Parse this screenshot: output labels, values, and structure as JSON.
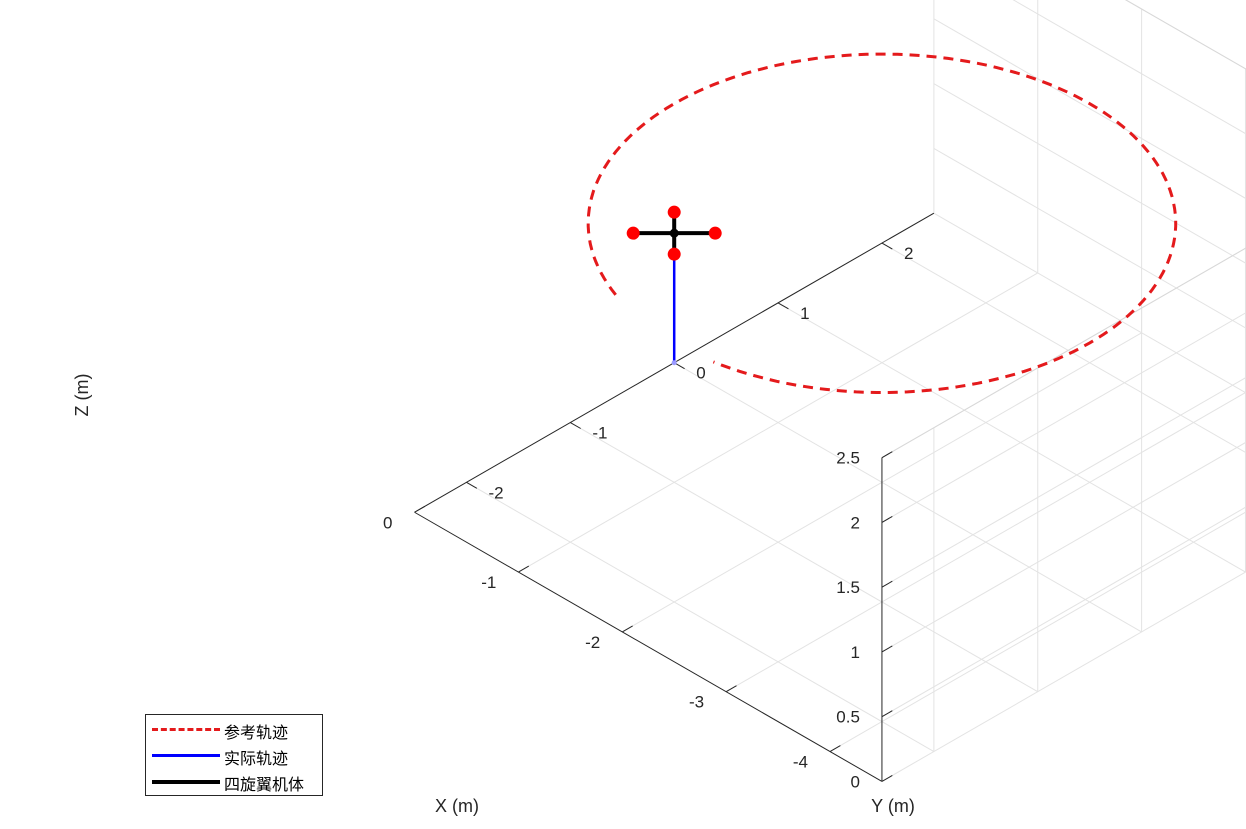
{
  "chart_data": {
    "type": "line3d",
    "view": "isometric",
    "xlabel": "X (m)",
    "ylabel": "Y (m)",
    "zlabel": "Z (m)",
    "xlim": [
      -4.5,
      0
    ],
    "ylim": [
      -2.5,
      2.5
    ],
    "zlim": [
      0,
      2.5
    ],
    "xticks": [
      "-4",
      "-3",
      "-2",
      "-1",
      "0"
    ],
    "yticks": [
      "-2",
      "-1",
      "0",
      "1",
      "2"
    ],
    "zticks": [
      "0",
      "0.5",
      "1",
      "1.5",
      "2",
      "2.5"
    ],
    "grid": true,
    "legend_position": "bottom-left",
    "series": [
      {
        "name": "参考轨迹",
        "color": "#e41a1c",
        "style": "dashed",
        "shape": "circle",
        "center": [
          -2,
          0,
          2
        ],
        "radius": 2,
        "gap_deg": [
          -10,
          20
        ]
      },
      {
        "name": "实际轨迹",
        "color": "#0000ff",
        "style": "solid",
        "points": [
          [
            0,
            0,
            0
          ],
          [
            0,
            0,
            1
          ]
        ]
      },
      {
        "name": "四旋翼机体",
        "color": "#000000",
        "style": "solid",
        "center": [
          0,
          0,
          1
        ],
        "arm_length": 0.4,
        "rotor_color": "#ff0000"
      }
    ]
  }
}
